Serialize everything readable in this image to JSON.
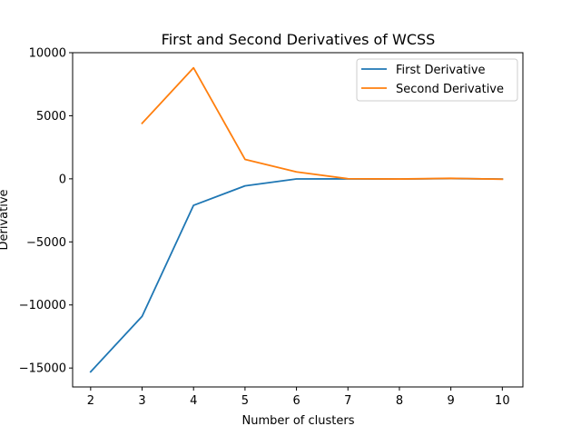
{
  "chart_data": {
    "type": "line",
    "title": "First and Second Derivatives of WCSS",
    "xlabel": "Number of clusters",
    "ylabel": "Derivative",
    "xlim": [
      1.65,
      10.4
    ],
    "ylim": [
      -16500,
      10000
    ],
    "xticks": [
      2,
      3,
      4,
      5,
      6,
      7,
      8,
      9,
      10
    ],
    "yticks": [
      -15000,
      -10000,
      -5000,
      0,
      5000,
      10000
    ],
    "ytick_labels": [
      "−15000",
      "−10000",
      "−5000",
      "0",
      "5000",
      "10000"
    ],
    "grid": false,
    "legend_position": "top-right",
    "series": [
      {
        "name": "First Derivative",
        "color": "#1f77b4",
        "x": [
          2,
          3,
          4,
          5,
          6,
          7,
          8,
          9,
          10
        ],
        "values": [
          -15300,
          -10900,
          -2100,
          -560,
          -10,
          -5,
          -20,
          20,
          -15
        ]
      },
      {
        "name": "Second Derivative",
        "color": "#ff7f0e",
        "x": [
          3,
          4,
          5,
          6,
          7,
          8,
          9,
          10
        ],
        "values": [
          4400,
          8800,
          1540,
          550,
          10,
          -15,
          40,
          -30
        ]
      }
    ]
  }
}
